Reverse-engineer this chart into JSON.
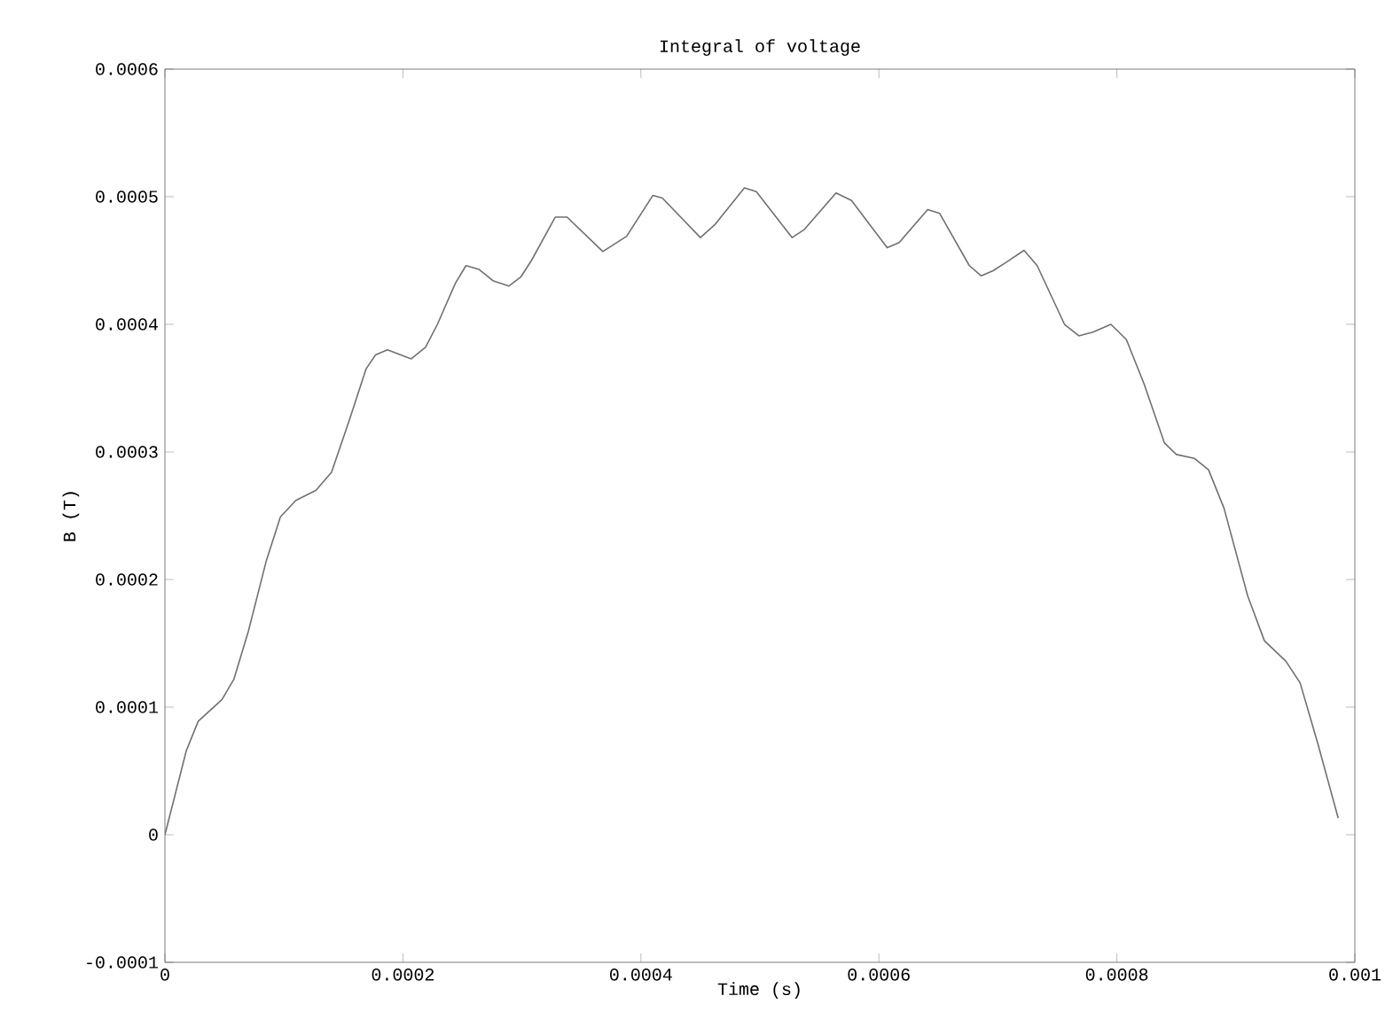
{
  "chart_data": {
    "type": "line",
    "title": "Integral of voltage",
    "xlabel": "Time (s)",
    "ylabel": "B (T)",
    "xlim": [
      0,
      0.001
    ],
    "xticks": [
      0,
      0.0002,
      0.0004,
      0.0006,
      0.0008,
      0.001
    ],
    "ylim": [
      -0.0001,
      0.0006
    ],
    "yticks": [
      -0.0001,
      0,
      0.0001,
      0.0002,
      0.0003,
      0.0004,
      0.0005,
      0.0006
    ],
    "grid": false,
    "marker": "none",
    "line_style": "solid",
    "series": [
      {
        "color": "#707070",
        "x": [
          0,
          1.8e-05,
          2.8e-05,
          4.8e-05,
          5.8e-05,
          7e-05,
          8.5e-05,
          9.7e-05,
          0.00011,
          0.000127,
          0.00014,
          0.000155,
          0.000169,
          0.000177,
          0.000187,
          0.000207,
          0.000219,
          0.000229,
          0.000244,
          0.000253,
          0.000264,
          0.000276,
          0.000289,
          0.000299,
          0.000308,
          0.000328,
          0.000338,
          0.000368,
          0.000388,
          0.00041,
          0.000418,
          0.00045,
          0.000462,
          0.000487,
          0.000497,
          0.000527,
          0.000537,
          0.000564,
          0.000577,
          0.000607,
          0.000617,
          0.000641,
          0.000651,
          0.000676,
          0.000686,
          0.000696,
          0.000706,
          0.000722,
          0.000733,
          0.000756,
          0.000768,
          0.00078,
          0.000795,
          0.000808,
          0.000823,
          0.00084,
          0.00085,
          0.000865,
          0.000877,
          0.00089,
          0.00091,
          0.000924,
          0.000942,
          0.000954,
          0.000969,
          0.000986
        ],
        "values": [
          0,
          6.6e-05,
          8.9e-05,
          0.000106,
          0.000122,
          0.000159,
          0.000214,
          0.000249,
          0.000262,
          0.00027,
          0.000284,
          0.000325,
          0.000365,
          0.000376,
          0.00038,
          0.000373,
          0.000382,
          0.0004,
          0.000432,
          0.000446,
          0.000443,
          0.000434,
          0.00043,
          0.000437,
          0.00045,
          0.000484,
          0.000484,
          0.000457,
          0.000469,
          0.000501,
          0.000499,
          0.000468,
          0.000478,
          0.000507,
          0.000504,
          0.000468,
          0.000474,
          0.000503,
          0.000497,
          0.00046,
          0.000464,
          0.00049,
          0.000487,
          0.000446,
          0.000438,
          0.000442,
          0.000448,
          0.000458,
          0.000446,
          0.0004,
          0.000391,
          0.000394,
          0.0004,
          0.000388,
          0.000353,
          0.000307,
          0.000298,
          0.000295,
          0.000286,
          0.000256,
          0.000187,
          0.000152,
          0.000136,
          0.000119,
          7.1e-05,
          1.3e-05
        ]
      }
    ]
  }
}
